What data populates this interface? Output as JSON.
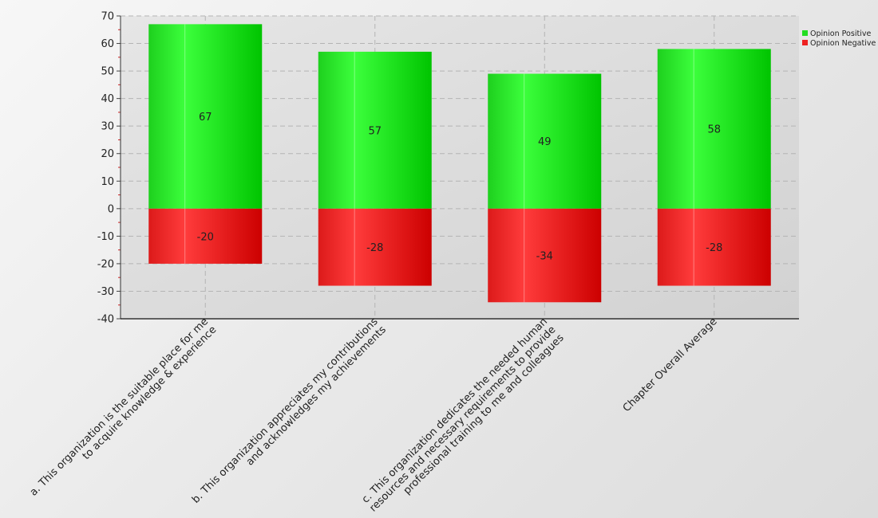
{
  "chart_data": {
    "type": "bar",
    "stacked": true,
    "title": "",
    "xlabel": "",
    "ylabel": "",
    "categories": [
      [
        "a. This organization is the suitable place for me",
        "to acquire knowledge & experience"
      ],
      [
        "b. This organization appreciates my contributions",
        "and acknowledges my achievements"
      ],
      [
        "c. This organization dedicates the needed human",
        "resources and necessary requirements to provide",
        "professional training to me and colleagues"
      ],
      [
        "Chapter Overall Average"
      ]
    ],
    "series": [
      {
        "name": "Opinion Positive",
        "values": [
          67,
          57,
          49,
          58
        ],
        "color": "#22dd22"
      },
      {
        "name": "Opinion Negative",
        "values": [
          -20,
          -28,
          -34,
          -28
        ],
        "color": "#ee2222"
      }
    ],
    "ylim": [
      -40,
      70
    ],
    "yticks": [
      -40,
      -30,
      -20,
      -10,
      0,
      10,
      20,
      30,
      40,
      50,
      60,
      70
    ],
    "grid": true,
    "legend_position": "top-right"
  }
}
